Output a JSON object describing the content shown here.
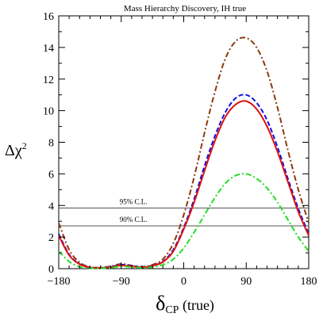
{
  "chart_data": {
    "type": "line",
    "title": "Mass Hierarchy Discovery, IH true",
    "xlabel": {
      "symbol": "δ",
      "subscript": "CP",
      "suffix": " (true)"
    },
    "ylabel": {
      "symbol": "Δχ",
      "superscript": "2"
    },
    "xlim": [
      -180,
      180
    ],
    "ylim": [
      0,
      16
    ],
    "xticks": [
      -180,
      -90,
      0,
      90,
      180
    ],
    "yticks": [
      0,
      2,
      4,
      6,
      8,
      10,
      12,
      14,
      16
    ],
    "grid": false,
    "legend": "none",
    "reference_lines": [
      {
        "label": "95% C.L.",
        "y": 3.84,
        "color": "#555555"
      },
      {
        "label": "90% C.L.",
        "y": 2.71,
        "color": "#555555"
      }
    ],
    "x": [
      -180,
      -165,
      -150,
      -135,
      -120,
      -105,
      -90,
      -75,
      -60,
      -45,
      -30,
      -15,
      0,
      15,
      30,
      45,
      60,
      75,
      90,
      105,
      120,
      135,
      150,
      165,
      180
    ],
    "series": [
      {
        "style": "dash-dot-brown",
        "color": "#8B3A0E",
        "dash": "7,3,2,3",
        "values": [
          2.9,
          1.2,
          0.4,
          0.1,
          0.08,
          0.15,
          0.3,
          0.2,
          0.12,
          0.25,
          0.6,
          1.6,
          3.4,
          5.8,
          8.6,
          11.2,
          13.3,
          14.4,
          14.6,
          14.0,
          12.5,
          10.2,
          7.5,
          5.0,
          2.9
        ]
      },
      {
        "style": "dashed-blue",
        "color": "#1010e0",
        "dash": "6,3",
        "values": [
          2.2,
          0.9,
          0.3,
          0.08,
          0.05,
          0.12,
          0.25,
          0.18,
          0.1,
          0.2,
          0.45,
          1.2,
          2.6,
          4.4,
          6.5,
          8.4,
          9.9,
          10.8,
          11.0,
          10.5,
          9.4,
          7.7,
          5.7,
          3.8,
          2.2
        ]
      },
      {
        "style": "solid-red",
        "color": "#e01010",
        "dash": "",
        "values": [
          2.1,
          0.85,
          0.28,
          0.07,
          0.04,
          0.1,
          0.2,
          0.15,
          0.08,
          0.18,
          0.42,
          1.1,
          2.5,
          4.2,
          6.2,
          8.1,
          9.6,
          10.4,
          10.6,
          10.1,
          9.0,
          7.4,
          5.5,
          3.6,
          2.1
        ]
      },
      {
        "style": "dash-dot-green",
        "color": "#22dd22",
        "dash": "7,3,2,3",
        "values": [
          1.1,
          0.45,
          0.12,
          0.03,
          0.02,
          0.06,
          0.15,
          0.1,
          0.05,
          0.1,
          0.25,
          0.6,
          1.3,
          2.3,
          3.4,
          4.5,
          5.4,
          5.9,
          6.0,
          5.7,
          5.1,
          4.2,
          3.1,
          2.0,
          1.1
        ]
      }
    ]
  }
}
